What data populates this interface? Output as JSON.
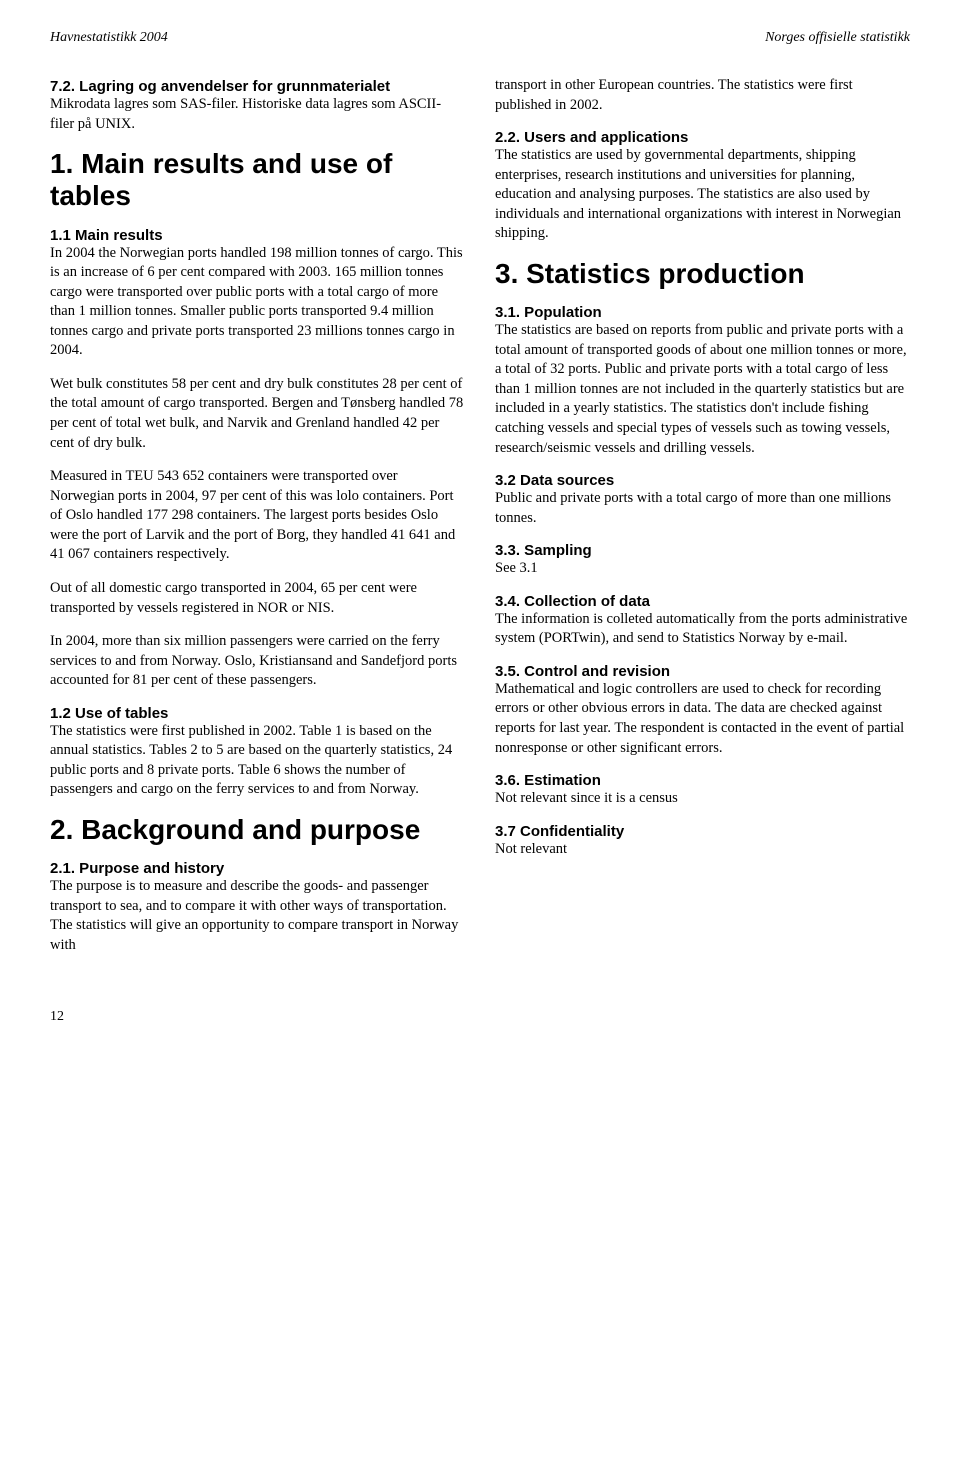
{
  "header": {
    "left": "Havnestatistikk 2004",
    "right": "Norges offisielle statistikk"
  },
  "left_col": {
    "s72_title": "7.2. Lagring og anvendelser for grunnmaterialet",
    "s72_body": "Mikrodata lagres som SAS-filer. Historiske data lagres som ASCII-filer på UNIX.",
    "h1_1": "1. Main results and use of tables",
    "s11_title": "1.1 Main results",
    "s11_body": "In 2004 the Norwegian ports handled 198 million tonnes of cargo. This is an increase of 6 per cent compared with 2003. 165 million tonnes cargo were transported over public ports with a total cargo of more than 1 million tonnes. Smaller public ports transported 9.4 million tonnes cargo and private ports transported 23 millions tonnes cargo in 2004.",
    "p2": "Wet bulk constitutes 58 per cent and dry bulk constitutes 28 per cent of the total amount of cargo transported. Bergen and Tønsberg handled 78 per cent of total wet bulk, and Narvik and Grenland handled 42 per cent of dry bulk.",
    "p3": "Measured in TEU 543 652 containers were transported over Norwegian ports in 2004, 97 per cent of this was lolo containers. Port of Oslo handled 177 298 containers. The largest ports besides Oslo were the port of Larvik and the port of Borg, they handled 41 641 and 41 067 containers respectively.",
    "p4": "Out of all domestic cargo transported in 2004, 65 per cent were transported by vessels registered in NOR or NIS.",
    "p5": "In 2004, more than six million passengers were carried on the ferry services to and from Norway. Oslo, Kristiansand and Sandefjord ports accounted for 81 per cent of these passengers.",
    "s12_title": "1.2 Use of tables",
    "s12_body": "The statistics were first published in 2002. Table 1 is based on the annual statistics. Tables 2 to 5 are based on the quarterly statistics, 24 public ports and 8 private ports. Table 6 shows the number of passengers and cargo on the ferry services to and from Norway.",
    "h1_2": "2. Background and purpose",
    "s21_title": "2.1. Purpose and history",
    "s21_body": "The purpose is to measure and describe the goods- and passenger transport to sea, and to compare it with other ways of transportation. The statistics will give an opportunity to compare transport in Norway with"
  },
  "right_col": {
    "cont": "transport in other European countries. The statistics were first published in 2002.",
    "s22_title": "2.2. Users and applications",
    "s22_body": "The statistics are used by governmental departments, shipping enterprises, research institutions and universities for planning, education and analysing purposes. The statistics are also used by individuals and international organizations with interest in Norwegian shipping.",
    "h1_3": "3. Statistics production",
    "s31_title": "3.1. Population",
    "s31_body": "The statistics are based on reports from public and private ports with a total amount of transported goods of about one million tonnes or more, a total of 32 ports. Public and private ports with a total cargo of less than 1 million tonnes are not included in the quarterly statistics but are included in a yearly statistics. The statistics don't include fishing catching vessels and special types of vessels such as towing vessels, research/seismic vessels and drilling vessels.",
    "s32_title": "3.2 Data sources",
    "s32_body": "Public and private ports with a total cargo of more than one millions tonnes.",
    "s33_title": "3.3. Sampling",
    "s33_body": "See 3.1",
    "s34_title": "3.4. Collection of data",
    "s34_body": "The information is colleted automatically from the ports administrative system (PORTwin), and send to Statistics Norway by e-mail.",
    "s35_title": "3.5. Control and revision",
    "s35_body": "Mathematical and logic controllers are used to check for recording errors or other obvious errors in data. The data are checked against reports for last year. The respondent is contacted in the event of partial nonresponse or other significant errors.",
    "s36_title": "3.6. Estimation",
    "s36_body": "Not relevant since it is a census",
    "s37_title": "3.7 Confidentiality",
    "s37_body": "Not relevant"
  },
  "page_number": "12"
}
